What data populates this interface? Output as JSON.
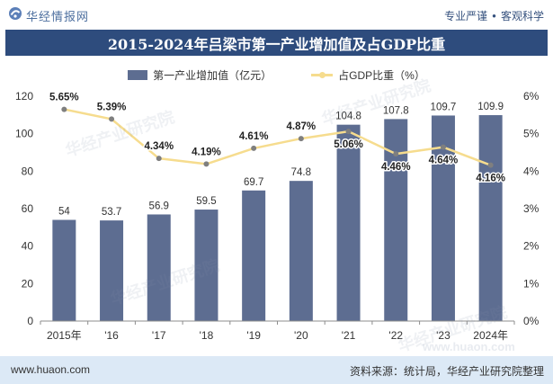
{
  "header": {
    "logo_icon": "huajing-logo-icon",
    "logo_text": "华经情报网",
    "tagline_left": "专业严谨",
    "tagline_separator": "●",
    "tagline_right": "客观科学"
  },
  "chart_data": {
    "type": "bar",
    "title": "2015-2024年吕梁市第一产业增加值及占GDP比重",
    "categories": [
      "2015年",
      "'16",
      "'17",
      "'18",
      "'19",
      "'20",
      "'21",
      "'22",
      "'23",
      "2024年"
    ],
    "series": [
      {
        "name": "第一产业增加值（亿元）",
        "type": "bar",
        "axis": "left",
        "color": "#5D6D91",
        "values": [
          54,
          53.7,
          56.9,
          59.5,
          69.7,
          74.8,
          104.8,
          107.8,
          109.7,
          109.9
        ],
        "value_labels": [
          "54",
          "53.7",
          "56.9",
          "59.5",
          "69.7",
          "74.8",
          "104.8",
          "107.8",
          "109.7",
          "109.9"
        ]
      },
      {
        "name": "占GDP比重（%）",
        "type": "line",
        "axis": "right",
        "color": "#F6DC8E",
        "marker_color": "#7F7F7F",
        "values": [
          5.65,
          5.39,
          4.34,
          4.19,
          4.61,
          4.87,
          5.06,
          4.46,
          4.64,
          4.16
        ],
        "value_labels": [
          "5.65%",
          "5.39%",
          "4.34%",
          "4.19%",
          "4.61%",
          "4.87%",
          "5.06%",
          "4.46%",
          "4.64%",
          "4.16%"
        ]
      }
    ],
    "y_left": {
      "ylim": [
        0,
        120
      ],
      "ticks": [
        0,
        20,
        40,
        60,
        80,
        100,
        120
      ],
      "tick_labels": [
        "0",
        "20",
        "40",
        "60",
        "80",
        "100",
        "120"
      ]
    },
    "y_right": {
      "ylim": [
        0,
        6
      ],
      "ticks": [
        0,
        1,
        2,
        3,
        4,
        5,
        6
      ],
      "tick_labels": [
        "0%",
        "1%",
        "2%",
        "3%",
        "4%",
        "5%",
        "6%"
      ]
    },
    "grid": false,
    "legend_position": "top"
  },
  "footer": {
    "website": "www.huaon.com",
    "source": "资料来源：统计局，华经产业研究院整理"
  },
  "watermark": {
    "text": "华经产业研究院",
    "url": "www.huaon.com"
  },
  "theme": {
    "title_bar": "#2E4C7D",
    "footer_band": "#DCE9F6"
  }
}
